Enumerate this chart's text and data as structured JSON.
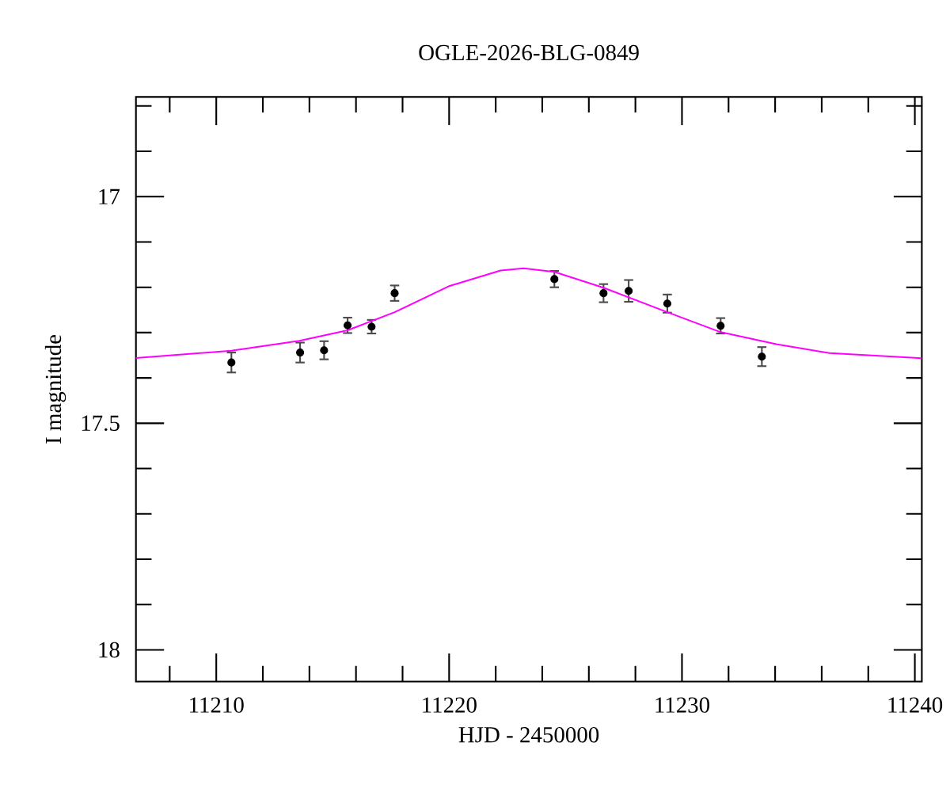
{
  "chart_data": {
    "type": "scatter",
    "title": "OGLE-2026-BLG-0849",
    "xlabel": "HJD - 2450000",
    "ylabel": "I magnitude",
    "xlim": [
      11206.55,
      11240.3
    ],
    "ylim": [
      18.07,
      16.78
    ],
    "xticks": [
      11210,
      11220,
      11230,
      11240,
      {
        "value": 11208,
        "label": null
      },
      {
        "value": 11212,
        "label": null
      },
      {
        "value": 11214,
        "label": null
      },
      {
        "value": 11216,
        "label": null
      },
      {
        "value": 11218,
        "label": null
      },
      {
        "value": 11222,
        "label": null
      },
      {
        "value": 11224,
        "label": null
      },
      {
        "value": 11226,
        "label": null
      },
      {
        "value": 11228,
        "label": null
      },
      {
        "value": 11232,
        "label": null
      },
      {
        "value": 11234,
        "label": null
      },
      {
        "value": 11236,
        "label": null
      },
      {
        "value": 11238,
        "label": null
      }
    ],
    "yticks": [
      17,
      17.5,
      18,
      {
        "value": 16.8,
        "label": null
      },
      {
        "value": 16.9,
        "label": null
      },
      {
        "value": 17.1,
        "label": null
      },
      {
        "value": 17.2,
        "label": null
      },
      {
        "value": 17.3,
        "label": null
      },
      {
        "value": 17.4,
        "label": null
      },
      {
        "value": 17.6,
        "label": null
      },
      {
        "value": 17.7,
        "label": null
      },
      {
        "value": 17.8,
        "label": null
      },
      {
        "value": 17.9,
        "label": null
      }
    ],
    "grid": false,
    "series": [
      {
        "color": "#000000",
        "marker": "circle",
        "x": [
          11210.65,
          11213.6,
          11214.63,
          11215.64,
          11216.67,
          11217.66,
          11224.52,
          11226.63,
          11227.71,
          11229.37,
          11231.66,
          11233.43
        ],
        "values": [
          17.366,
          17.344,
          17.339,
          17.284,
          17.287,
          17.213,
          17.182,
          17.213,
          17.208,
          17.236,
          17.285,
          17.353
        ],
        "errors": [
          0.022,
          0.022,
          0.02,
          0.017,
          0.015,
          0.017,
          0.018,
          0.02,
          0.024,
          0.02,
          0.017,
          0.021
        ]
      },
      {
        "type": "line",
        "color": "#ff00ff",
        "marker": "none",
        "line_style": "solid",
        "x": [
          11206.55,
          11210.65,
          11213.57,
          11215.64,
          11217.66,
          11219.97,
          11222.21,
          11223.2,
          11224.52,
          11226.63,
          11229.37,
          11231.66,
          11234.09,
          11236.33,
          11240.15,
          11240.3
        ],
        "values": [
          17.356,
          17.34,
          17.318,
          17.295,
          17.255,
          17.198,
          17.163,
          17.158,
          17.166,
          17.201,
          17.255,
          17.299,
          17.326,
          17.345,
          17.356,
          17.357
        ]
      }
    ]
  }
}
